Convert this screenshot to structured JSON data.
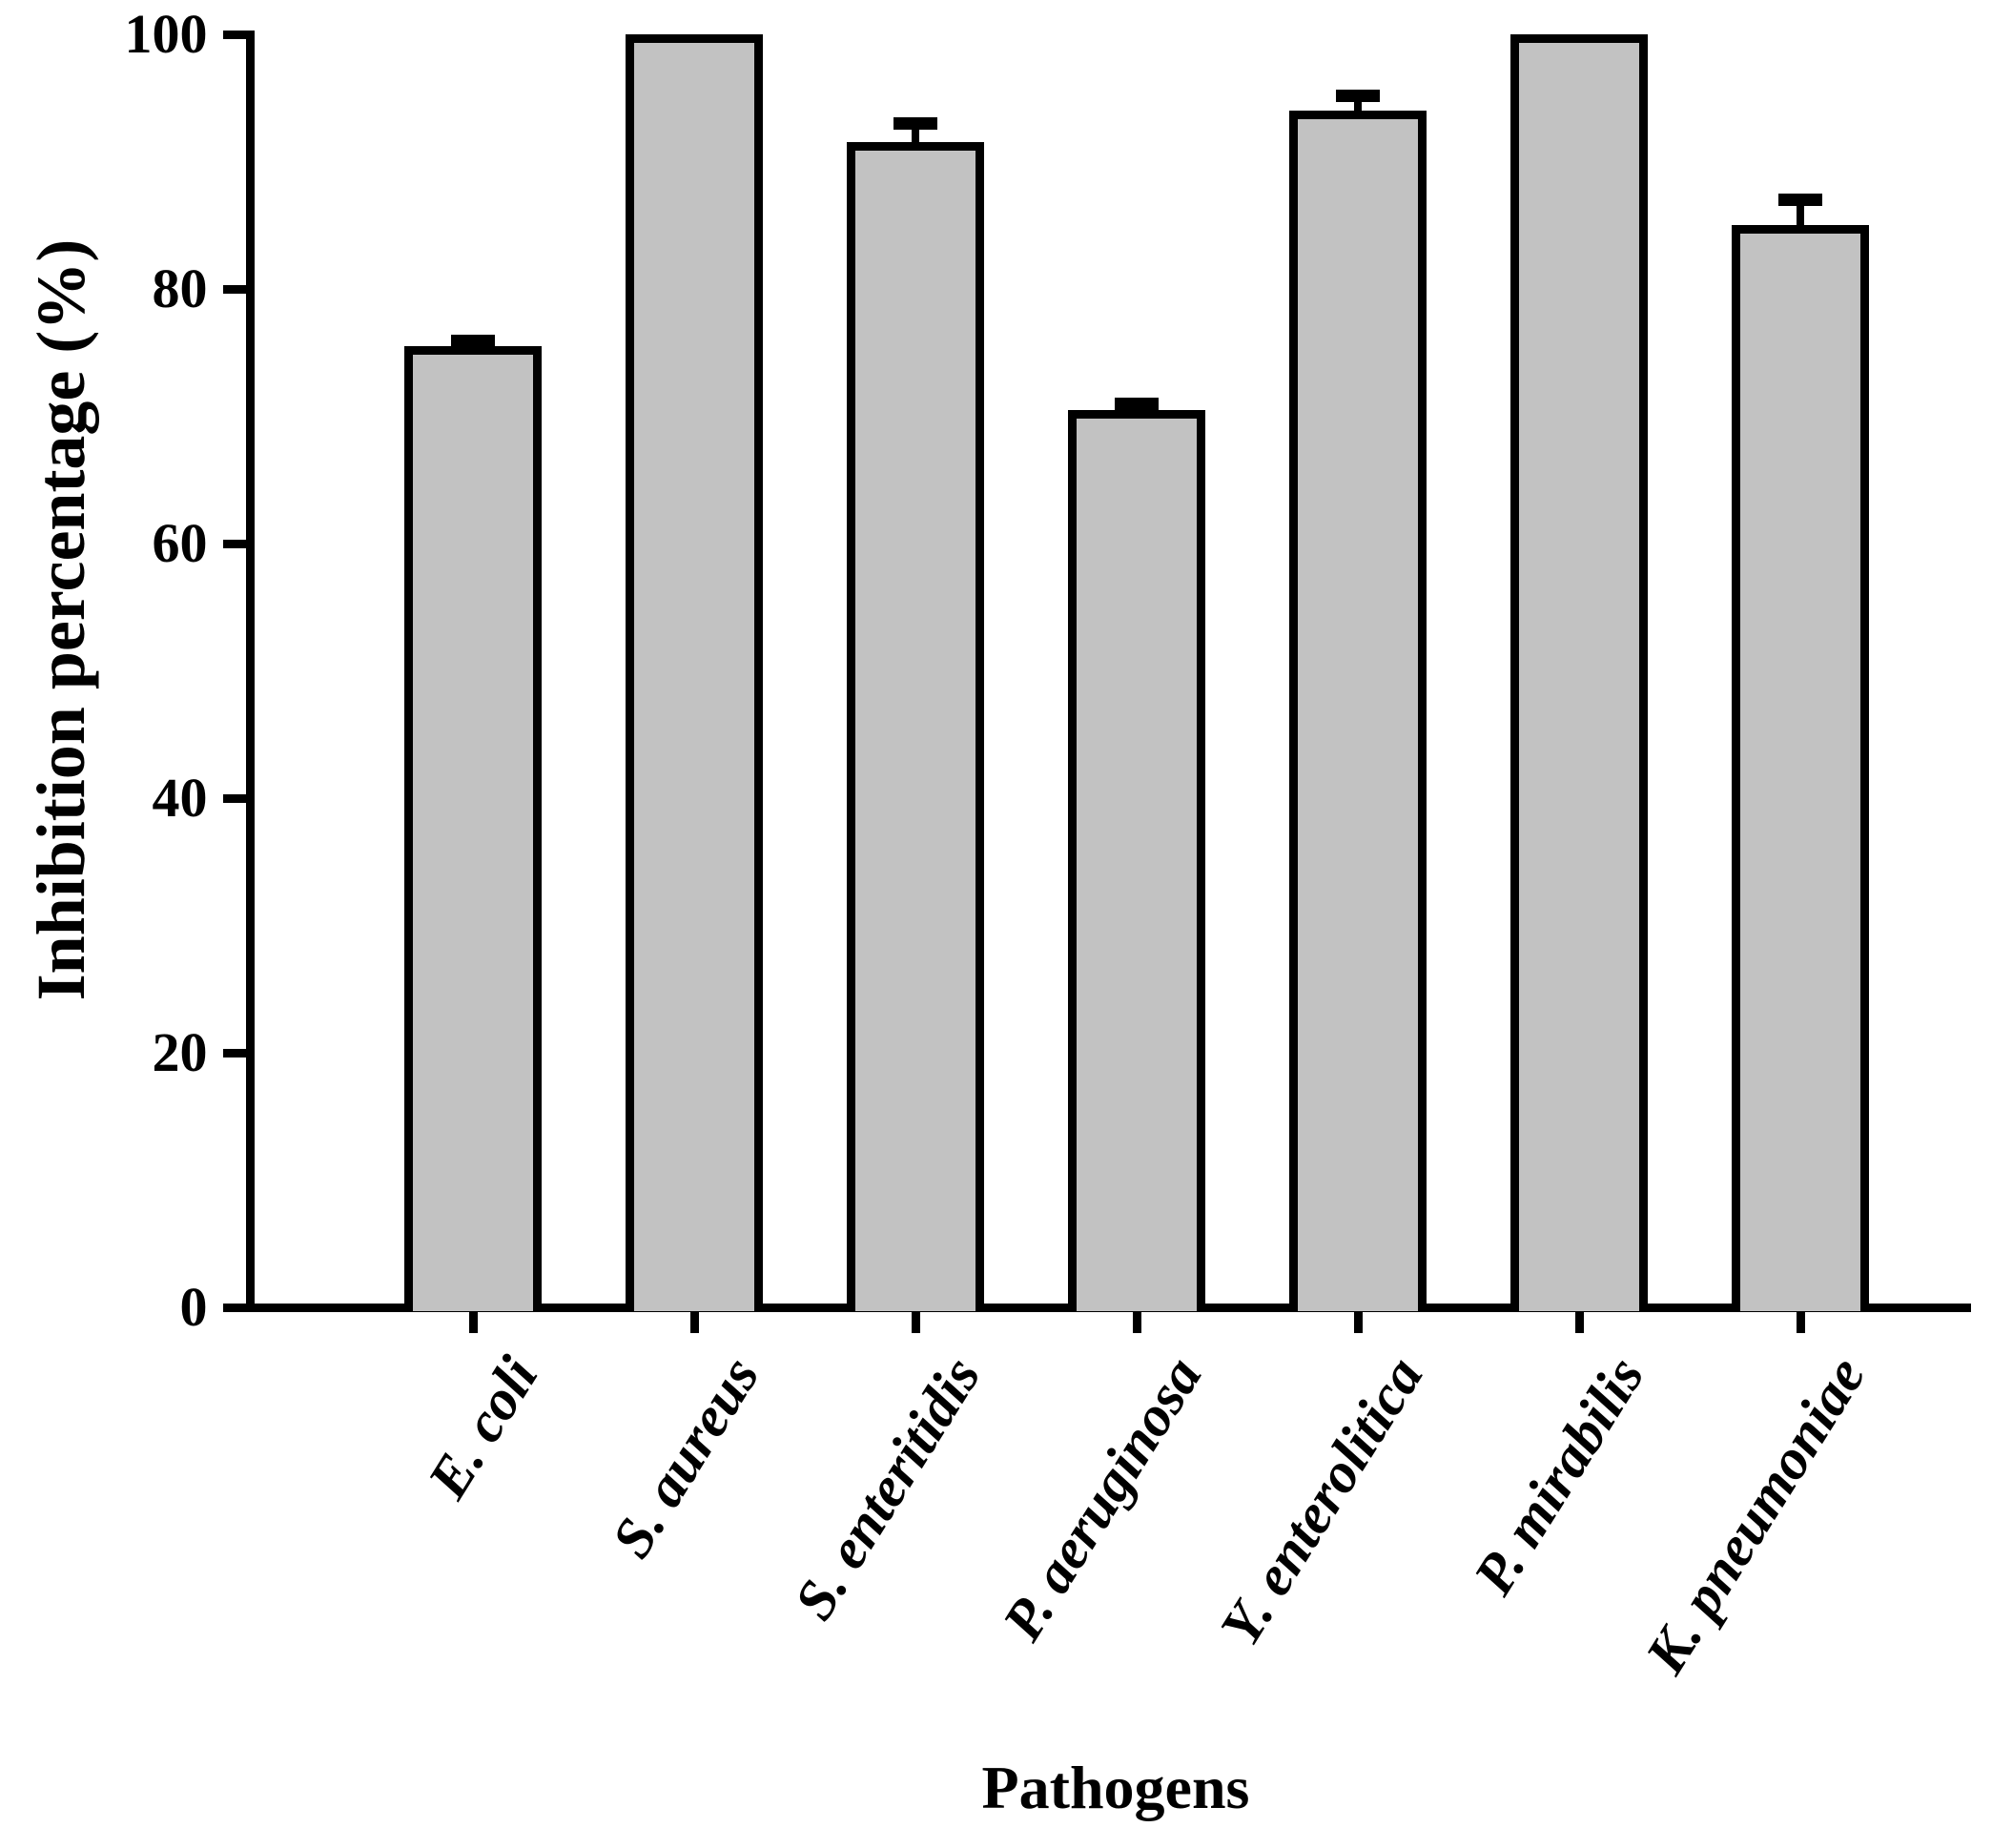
{
  "figure": {
    "background": "#ffffff",
    "axis_color": "#000000"
  },
  "chart_data": {
    "type": "bar",
    "title": "",
    "xlabel": "Pathogens",
    "ylabel": "Inhibition percentage (%)",
    "categories": [
      "E. coli",
      "S. aureus",
      "S. enteritidis",
      "P. aeruginosa",
      "Y. enterolitica",
      "P. mirabilis",
      "K. pneumoniae"
    ],
    "values": [
      75.5,
      100,
      91.5,
      70.5,
      94,
      100,
      85
    ],
    "errors_plus": [
      0.4,
      0,
      1.5,
      0.5,
      1.2,
      0,
      2
    ],
    "ylim": [
      0,
      100
    ],
    "yticks": [
      0,
      20,
      40,
      60,
      80,
      100
    ],
    "grid": false,
    "legend": null,
    "bar_fill_color": "#c2c2c2",
    "bar_border_color": "#000000",
    "error_bar_color": "#000000",
    "category_label_style": "bold-italic-rotated"
  }
}
